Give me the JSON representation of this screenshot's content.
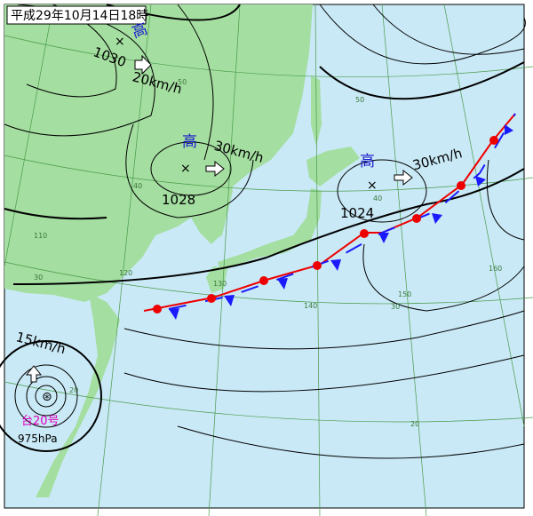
{
  "header": {
    "title": "平成29年10月14日18時"
  },
  "systems": [
    {
      "label": "高",
      "pressure": "1030",
      "motion": "20km/h"
    },
    {
      "label": "高",
      "pressure": "1028",
      "motion": "30km/h"
    },
    {
      "label": "高",
      "pressure": "1024",
      "motion": "30km/h"
    }
  ],
  "typhoon": {
    "name": "台20号",
    "pressure": "975hPa",
    "motion": "15km/h"
  },
  "grid_labels": [
    "50",
    "50",
    "40",
    "40",
    "30",
    "30",
    "20",
    "20",
    "110",
    "120",
    "130",
    "140",
    "150",
    "160"
  ]
}
